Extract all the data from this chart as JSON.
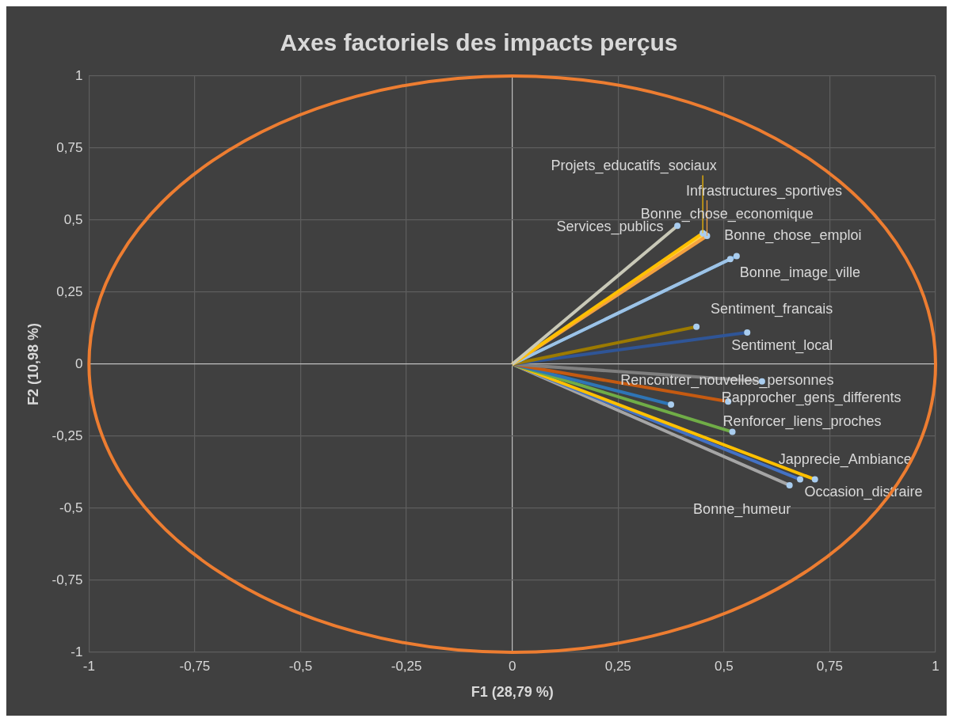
{
  "chart_data": {
    "type": "line",
    "title": "Axes factoriels des impacts perçus",
    "xlabel": "F1 (28,79 %)",
    "ylabel": "F2 (10,98 %)",
    "xlim": [
      -1,
      1
    ],
    "ylim": [
      -1,
      1
    ],
    "xticks": [
      -1,
      {
        "value": -0.75,
        "label": "-0,75"
      },
      {
        "value": -0.5,
        "label": "-0,5"
      },
      {
        "value": -0.25,
        "label": "-0,25"
      },
      0,
      {
        "value": 0.25,
        "label": "0,25"
      },
      {
        "value": 0.5,
        "label": "0,5"
      },
      {
        "value": 0.75,
        "label": "0,75"
      },
      1
    ],
    "yticks": [
      -1,
      {
        "value": -0.75,
        "label": "-0,75"
      },
      {
        "value": -0.5,
        "label": "-0,5"
      },
      {
        "value": -0.25,
        "label": "-0,25"
      },
      0,
      {
        "value": 0.25,
        "label": "0,25"
      },
      {
        "value": 0.5,
        "label": "0,5"
      },
      {
        "value": 0.75,
        "label": "0,75"
      },
      1
    ],
    "grid": true,
    "legend": false,
    "marker": "circle",
    "line_style": "solid",
    "series": [
      {
        "name": "Services_publics",
        "color": "#c9c9b8",
        "x": [
          0,
          0.39
        ],
        "values": [
          0,
          0.48
        ]
      },
      {
        "name": "Projets_educatifs_sociaux",
        "color": "#ffc000",
        "x": [
          0,
          0.45
        ],
        "values": [
          0,
          0.455
        ]
      },
      {
        "name": "Infrastructures_sportives",
        "color": "#f4a040",
        "x": [
          0,
          0.46
        ],
        "values": [
          0,
          0.445
        ]
      },
      {
        "name": "Bonne_chose_economique",
        "color": "#ffd24a",
        "x": [
          0,
          0.455
        ],
        "values": [
          0,
          0.45
        ]
      },
      {
        "name": "Bonne_chose_emploi",
        "color": "#9dc3e6",
        "x": [
          0,
          0.515
        ],
        "values": [
          0,
          0.365
        ]
      },
      {
        "name": "Bonne_image_ville",
        "color": "#5b9bd5",
        "x": [
          0,
          0.53
        ],
        "values": [
          0,
          0.375
        ]
      },
      {
        "name": "Sentiment_francais",
        "color": "#9c7a00",
        "x": [
          0,
          0.435
        ],
        "values": [
          0,
          0.13
        ]
      },
      {
        "name": "Sentiment_local",
        "color": "#2f5597",
        "x": [
          0,
          0.555
        ],
        "values": [
          0,
          0.11
        ]
      },
      {
        "name": "Rencontrer_nouvelles_personnes",
        "color": "#7f7f7f",
        "x": [
          0,
          0.59
        ],
        "values": [
          0,
          -0.06
        ]
      },
      {
        "name": "Rapprocher_gens_differents",
        "color": "#c55a11",
        "x": [
          0,
          0.51
        ],
        "values": [
          0,
          -0.13
        ]
      },
      {
        "color": "#2e75b6",
        "x": [
          0,
          0.375
        ],
        "values": [
          0,
          -0.14
        ]
      },
      {
        "name": "Renforcer_liens_proches",
        "color": "#70ad47",
        "x": [
          0,
          0.52
        ],
        "values": [
          0,
          -0.235
        ]
      },
      {
        "name": "Japprecie_Ambiance",
        "color": "#ffc000",
        "x": [
          0,
          0.715
        ],
        "values": [
          0,
          -0.4
        ]
      },
      {
        "name": "Occasion_distraire",
        "color": "#4472c4",
        "x": [
          0,
          0.68
        ],
        "values": [
          0,
          -0.4
        ]
      },
      {
        "name": "Bonne_humeur",
        "color": "#a5a5a5",
        "x": [
          0,
          0.655
        ],
        "values": [
          0,
          -0.42
        ]
      }
    ]
  }
}
